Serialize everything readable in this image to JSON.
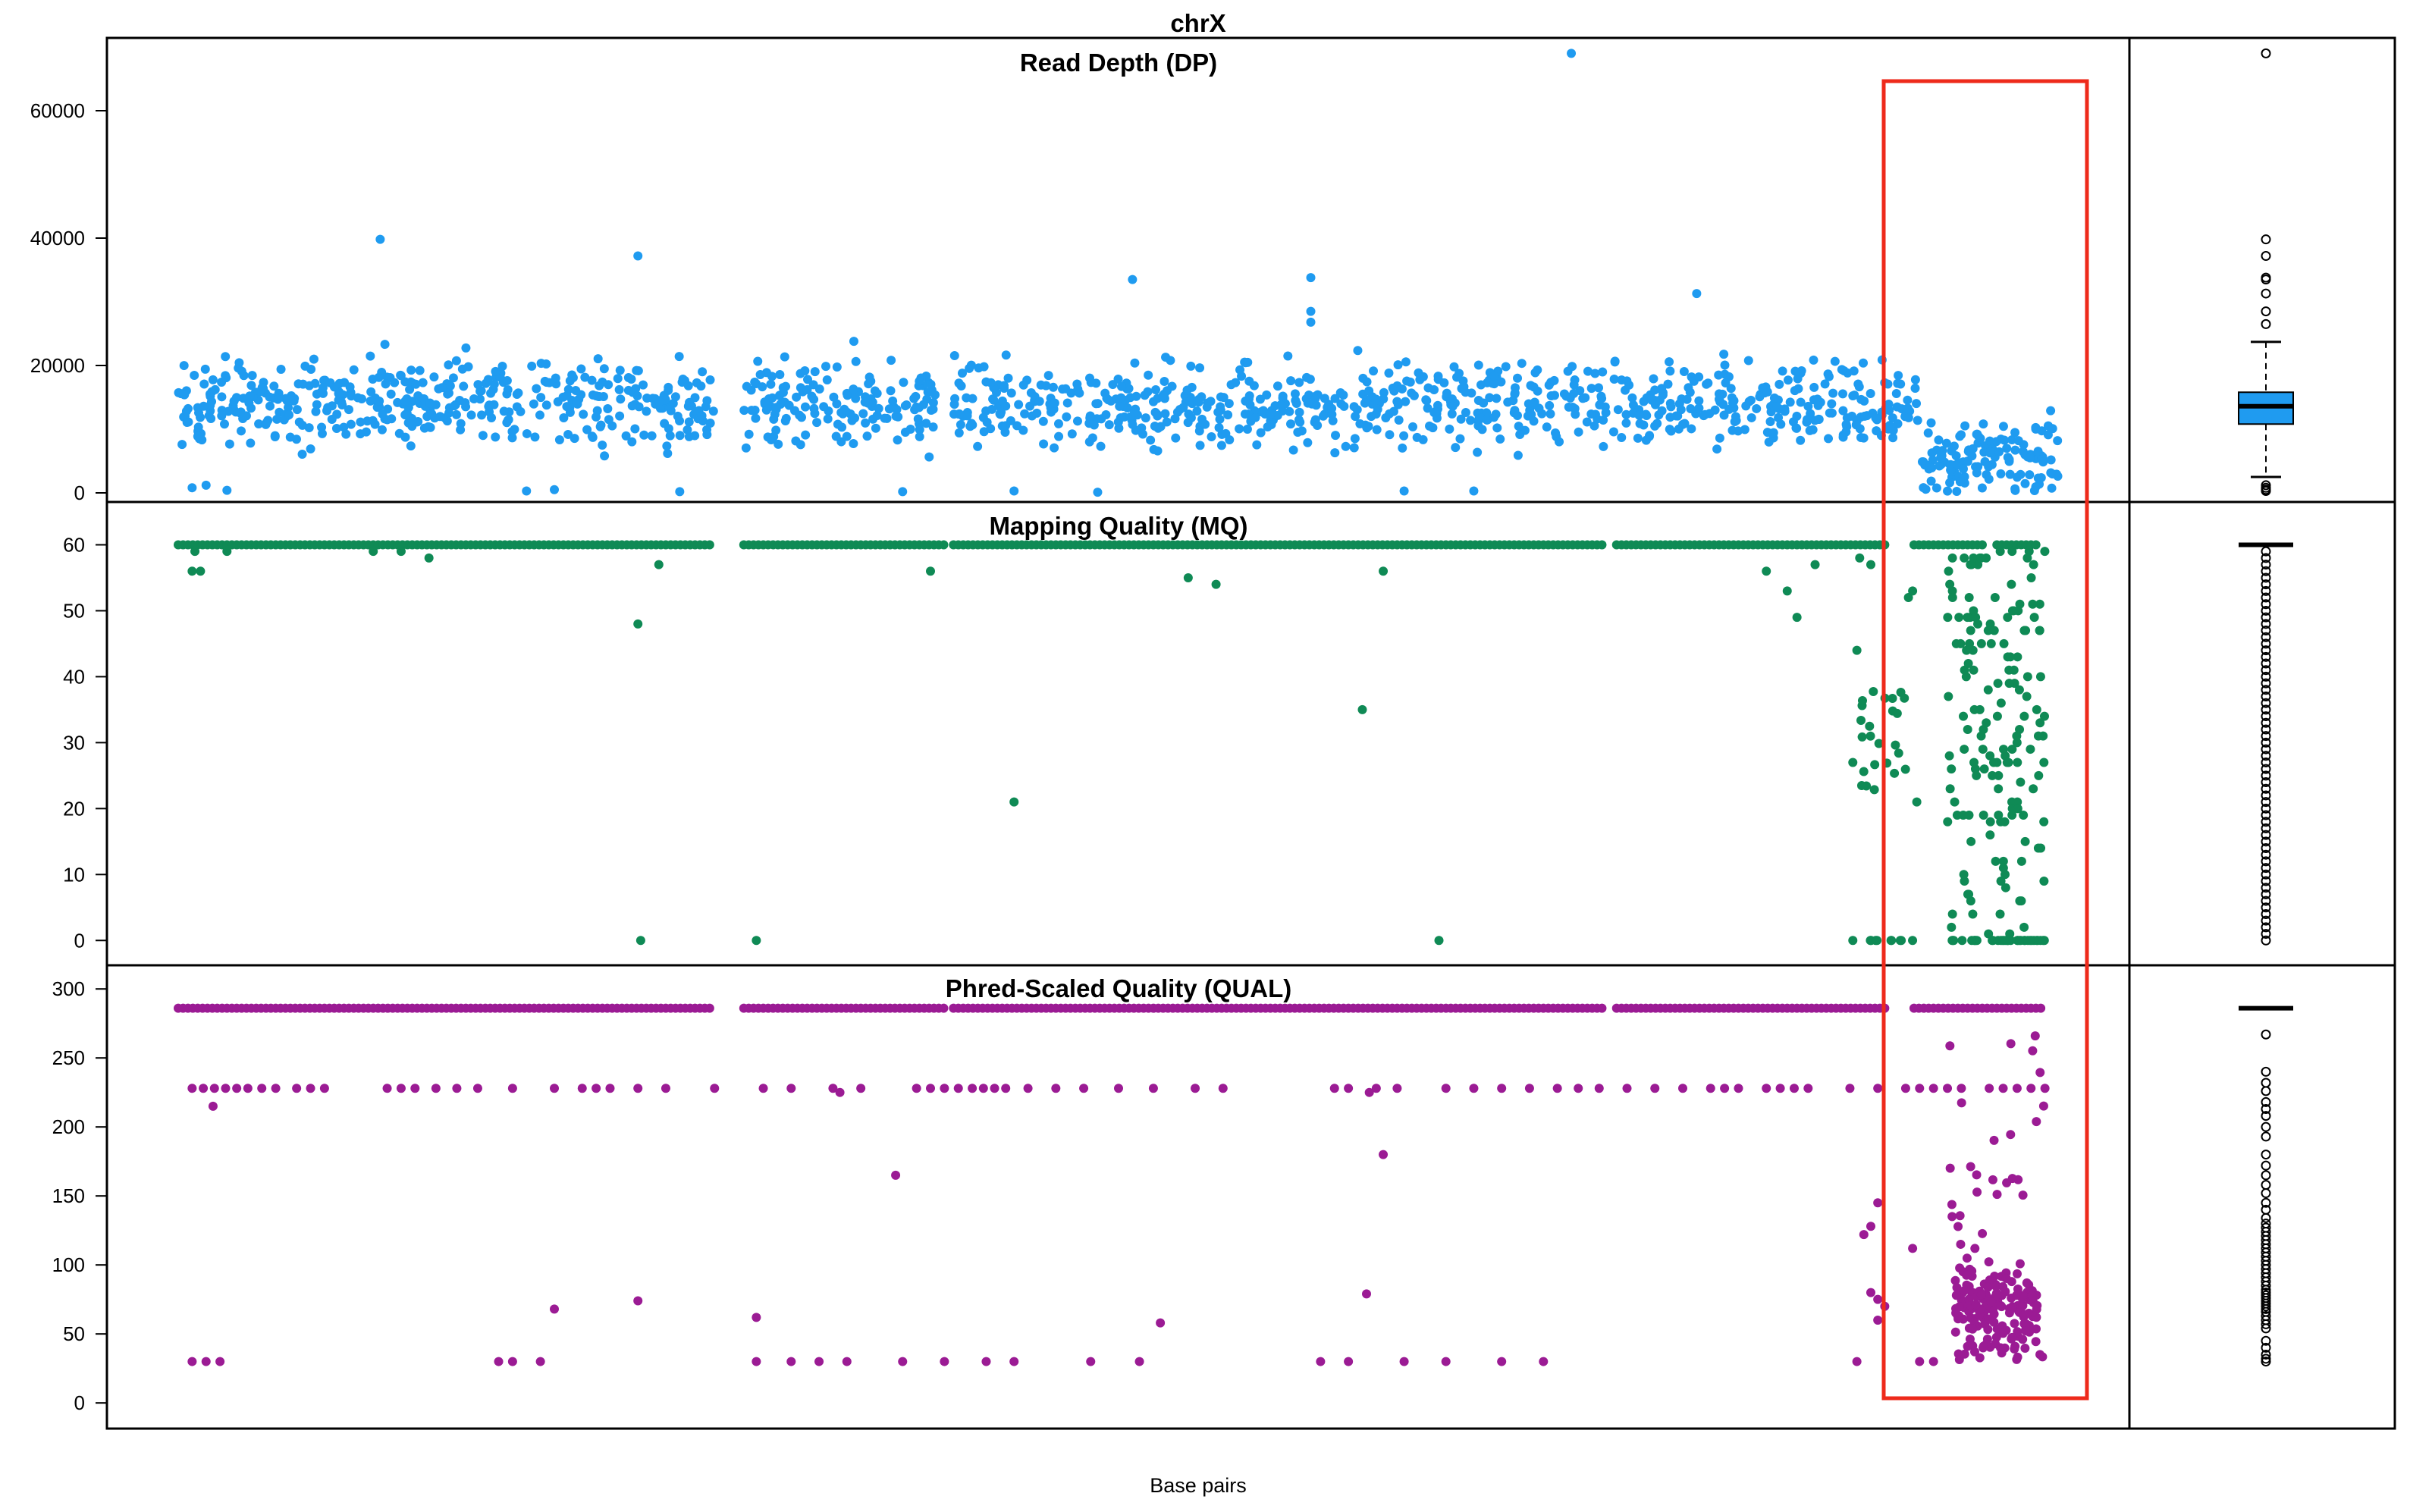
{
  "figure": {
    "title": "chrX",
    "xlabel": "Base pairs",
    "highlight_color": "#ee2a1b"
  },
  "chart_data": [
    {
      "type": "scatter",
      "title": "Read Depth (DP)",
      "ylabel": "",
      "xlabel": "",
      "x_range": [
        0,
        100
      ],
      "ylim": [
        0,
        70000
      ],
      "y_ticks": [
        0,
        20000,
        40000,
        60000
      ],
      "y_tick_labels": [
        "0",
        "20000",
        "40000",
        "60000"
      ],
      "color": "#1f9bf0",
      "baseline": 14000,
      "spread": 3200,
      "boxplot": {
        "min": 2500,
        "q1": 10800,
        "median": 13600,
        "q3": 15800,
        "max": 23700,
        "outliers": [
          1200,
          800,
          500,
          300,
          26500,
          28500,
          31300,
          33500,
          33800,
          37200,
          39800,
          69000
        ]
      },
      "outliers": [
        {
          "x": 14.5,
          "y": 39800
        },
        {
          "x": 33.0,
          "y": 37200
        },
        {
          "x": 68.5,
          "y": 33500
        },
        {
          "x": 81.3,
          "y": 33800
        },
        {
          "x": 81.3,
          "y": 28500
        },
        {
          "x": 81.3,
          "y": 26800
        },
        {
          "x": 100.0,
          "y": 69000
        },
        {
          "x": 109.0,
          "y": 31300
        },
        {
          "x": 48.5,
          "y": 23800
        },
        {
          "x": 1.0,
          "y": 800
        },
        {
          "x": 2.0,
          "y": 1200
        },
        {
          "x": 3.5,
          "y": 400
        },
        {
          "x": 25.0,
          "y": 300
        },
        {
          "x": 27.0,
          "y": 500
        },
        {
          "x": 36.0,
          "y": 200
        },
        {
          "x": 52.0,
          "y": 200
        },
        {
          "x": 60.0,
          "y": 300
        },
        {
          "x": 66.0,
          "y": 100
        },
        {
          "x": 88.0,
          "y": 300
        },
        {
          "x": 93.0,
          "y": 300
        }
      ]
    },
    {
      "type": "scatter",
      "title": "Mapping Quality (MQ)",
      "ylabel": "",
      "xlabel": "",
      "x_range": [
        0,
        100
      ],
      "ylim": [
        -2.5,
        65
      ],
      "y_ticks": [
        0,
        10,
        20,
        30,
        40,
        50,
        60
      ],
      "y_tick_labels": [
        "0",
        "10",
        "20",
        "30",
        "40",
        "50",
        "60"
      ],
      "color": "#0f8a55",
      "baseline": 60,
      "spread": 0,
      "boxplot": {
        "min": 60,
        "q1": 60,
        "median": 60,
        "q3": 60,
        "max": 60,
        "outliers": [
          59,
          58,
          57,
          56,
          55,
          54,
          53,
          52,
          51,
          50,
          49,
          48,
          47,
          46,
          45,
          44,
          43,
          42,
          41,
          40,
          39,
          38,
          37,
          36,
          35,
          34,
          33,
          32,
          31,
          30,
          29,
          28,
          27,
          26,
          25,
          24,
          23,
          22,
          21,
          20,
          19,
          18,
          17,
          16,
          15,
          14,
          13,
          12,
          11,
          10,
          9,
          8,
          7,
          6,
          5,
          4,
          3,
          2,
          1,
          0
        ]
      },
      "outliers": [
        {
          "x": 1.0,
          "y": 56
        },
        {
          "x": 1.6,
          "y": 56
        },
        {
          "x": 1.2,
          "y": 59
        },
        {
          "x": 3.5,
          "y": 59
        },
        {
          "x": 14.0,
          "y": 59
        },
        {
          "x": 16.0,
          "y": 59
        },
        {
          "x": 18.0,
          "y": 58
        },
        {
          "x": 33.0,
          "y": 48
        },
        {
          "x": 34.5,
          "y": 57
        },
        {
          "x": 33.2,
          "y": 0
        },
        {
          "x": 41.5,
          "y": 0
        },
        {
          "x": 54.0,
          "y": 56
        },
        {
          "x": 60.0,
          "y": 21
        },
        {
          "x": 72.5,
          "y": 55
        },
        {
          "x": 74.5,
          "y": 54
        },
        {
          "x": 85.0,
          "y": 35
        },
        {
          "x": 86.5,
          "y": 56
        },
        {
          "x": 90.5,
          "y": 0
        },
        {
          "x": 114.0,
          "y": 56
        },
        {
          "x": 115.5,
          "y": 53
        },
        {
          "x": 116.2,
          "y": 49
        },
        {
          "x": 117.5,
          "y": 57
        }
      ]
    },
    {
      "type": "scatter",
      "title": "Phred-Scaled Quality (QUAL)",
      "ylabel": "",
      "xlabel": "",
      "x_range": [
        0,
        100
      ],
      "ylim": [
        -12,
        310
      ],
      "y_ticks": [
        0,
        50,
        100,
        150,
        200,
        250,
        300
      ],
      "y_tick_labels": [
        "0",
        "50",
        "100",
        "150",
        "200",
        "250",
        "300"
      ],
      "color": "#9b1b94",
      "baseline": 286,
      "spread": 0,
      "boxplot": {
        "min": 286,
        "q1": 286,
        "median": 286,
        "q3": 286,
        "max": 286,
        "outliers": [
          267,
          240,
          232,
          226,
          218,
          213,
          208,
          200,
          193,
          180,
          172,
          165,
          158,
          152,
          145,
          140,
          134,
          130,
          127,
          124,
          121,
          118,
          115,
          112,
          109,
          106,
          103,
          100,
          97,
          94,
          91,
          88,
          85,
          82,
          80,
          78,
          76,
          74,
          72,
          70,
          68,
          66,
          63,
          60,
          57,
          54,
          45,
          40,
          35,
          32,
          30
        ]
      },
      "bands": [
        {
          "y": 228,
          "xs": [
            1,
            1.8,
            2.6,
            3.4,
            4.2,
            5,
            6,
            7,
            8.5,
            9.5,
            10.5,
            15,
            16,
            17,
            18.5,
            20,
            21.5,
            24,
            27,
            29,
            30,
            31,
            33,
            35,
            38.5,
            42,
            44,
            47,
            49,
            53,
            54,
            55,
            56,
            57,
            57.8,
            58.6,
            59.4,
            61,
            63,
            65,
            67.5,
            70,
            73,
            75,
            83,
            84,
            86,
            87.5,
            91,
            93,
            95,
            97,
            99,
            100.5,
            102,
            104,
            106,
            108,
            110,
            111,
            112,
            114,
            115,
            116,
            117,
            120,
            122,
            124,
            125,
            126,
            127,
            128,
            130,
            131,
            132,
            133,
            134
          ]
        },
        {
          "y": 30,
          "xs": [
            1,
            2,
            3,
            23,
            24,
            26,
            41.5,
            44,
            46,
            48,
            52,
            55,
            58,
            60,
            65.5,
            69,
            82,
            84,
            88,
            91,
            95,
            98
          ]
        }
      ],
      "outliers": [
        {
          "x": 2.5,
          "y": 215
        },
        {
          "x": 27.0,
          "y": 68
        },
        {
          "x": 33.0,
          "y": 74
        },
        {
          "x": 41.5,
          "y": 62
        },
        {
          "x": 47.5,
          "y": 225
        },
        {
          "x": 51.5,
          "y": 165
        },
        {
          "x": 85.5,
          "y": 225
        },
        {
          "x": 86.5,
          "y": 180
        },
        {
          "x": 85.3,
          "y": 79
        },
        {
          "x": 70.5,
          "y": 58
        }
      ]
    }
  ]
}
